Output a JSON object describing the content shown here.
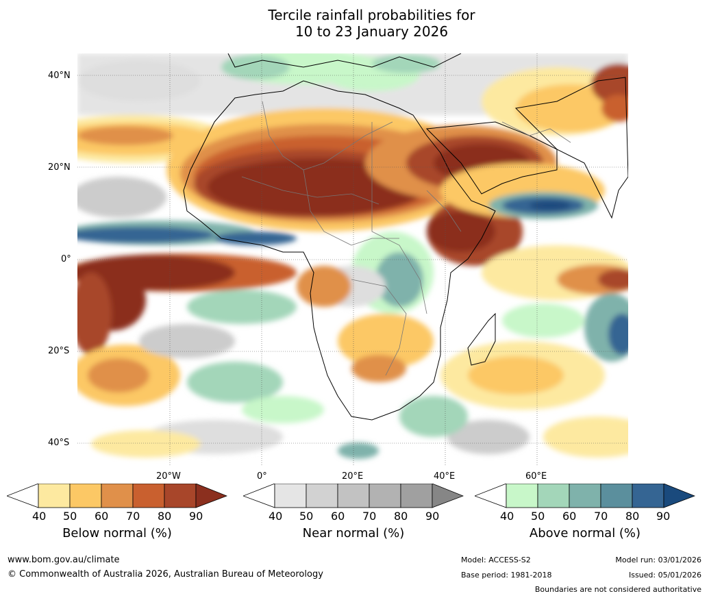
{
  "title": {
    "line1": "Tercile rainfall probabilities for",
    "line2": "10 to 23 January 2026"
  },
  "axes": {
    "lat_labels": [
      "40°N",
      "20°N",
      "0°",
      "20°S",
      "40°S"
    ],
    "lon_labels": [
      "20°W",
      "0°",
      "20°E",
      "40°E",
      "60°E"
    ]
  },
  "colorbars": [
    {
      "title": "Below normal (%)",
      "ticks": [
        "40",
        "50",
        "60",
        "70",
        "80",
        "90"
      ],
      "colors": [
        "#ffffff",
        "#fde9a0",
        "#fcc865",
        "#e0904a",
        "#c9602f",
        "#a8462a",
        "#8b2f1e"
      ]
    },
    {
      "title": "Near normal (%)",
      "ticks": [
        "40",
        "50",
        "60",
        "70",
        "80",
        "90"
      ],
      "colors": [
        "#ffffff",
        "#e5e5e5",
        "#d2d2d2",
        "#c2c2c2",
        "#b2b2b2",
        "#a0a0a0",
        "#868686"
      ]
    },
    {
      "title": "Above normal (%)",
      "ticks": [
        "40",
        "50",
        "60",
        "70",
        "80",
        "90"
      ],
      "colors": [
        "#ffffff",
        "#c8f7c9",
        "#a3d6b9",
        "#7fb2ab",
        "#5b8f9d",
        "#356593",
        "#1a4a7d"
      ]
    }
  ],
  "footer": {
    "website": "www.bom.gov.au/climate",
    "copyright": "© Commonwealth of Australia 2026, Australian Bureau of Meteorology",
    "model": "Model: ACCESS-S2",
    "base_period": "Base period: 1981-2018",
    "model_run": "Model run: 03/01/2026",
    "issued": "Issued: 05/01/2026",
    "disclaimer": "Boundaries are not considered authoritative"
  }
}
